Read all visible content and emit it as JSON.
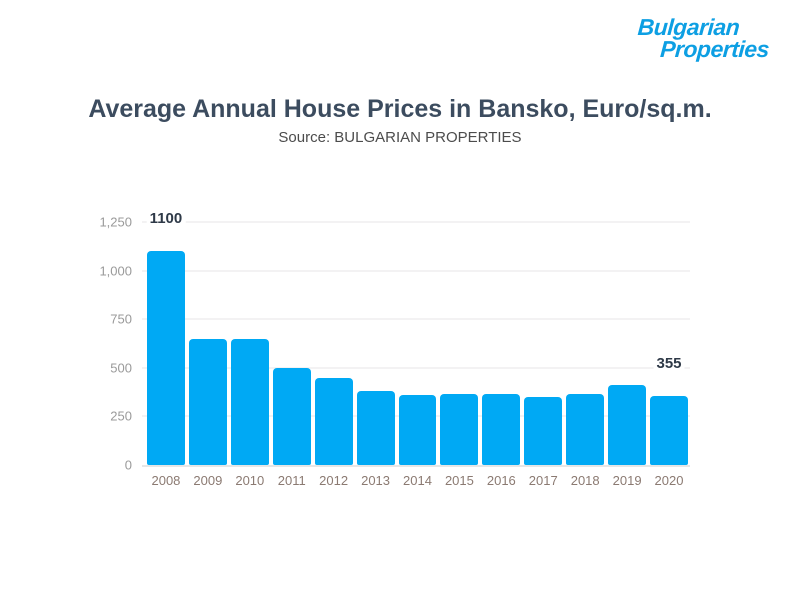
{
  "logo": {
    "line1": "Bulgarian",
    "line2": "Properties",
    "color": "#0d9fe3"
  },
  "header": {
    "title": "Average Annual House Prices in Bansko, Euro/sq.m.",
    "subtitle": "Source: BULGARIAN PROPERTIES"
  },
  "chart_data": {
    "type": "bar",
    "title": "Average Annual House Prices in Bansko, Euro/sq.m.",
    "subtitle": "Source: BULGARIAN PROPERTIES",
    "categories": [
      "2008",
      "2009",
      "2010",
      "2011",
      "2012",
      "2013",
      "2014",
      "2015",
      "2016",
      "2017",
      "2018",
      "2019",
      "2020"
    ],
    "values": [
      1100,
      650,
      650,
      500,
      450,
      380,
      360,
      365,
      365,
      350,
      365,
      410,
      355
    ],
    "annotations": [
      {
        "category": "2008",
        "text": "1100"
      },
      {
        "category": "2020",
        "text": "355"
      }
    ],
    "xlabel": "",
    "ylabel": "",
    "ylim": [
      0,
      1250
    ],
    "yticks": [
      0,
      250,
      500,
      750,
      1000,
      1250
    ],
    "ytick_labels": [
      "0",
      "250",
      "500",
      "750",
      "1,000",
      "1,250"
    ],
    "grid": true,
    "legend": false,
    "bar_color": "#00a9f4",
    "value_label_color": "#2e3947",
    "ytick_color": "#9a9a9a",
    "xtick_color": "#8b7a72"
  }
}
